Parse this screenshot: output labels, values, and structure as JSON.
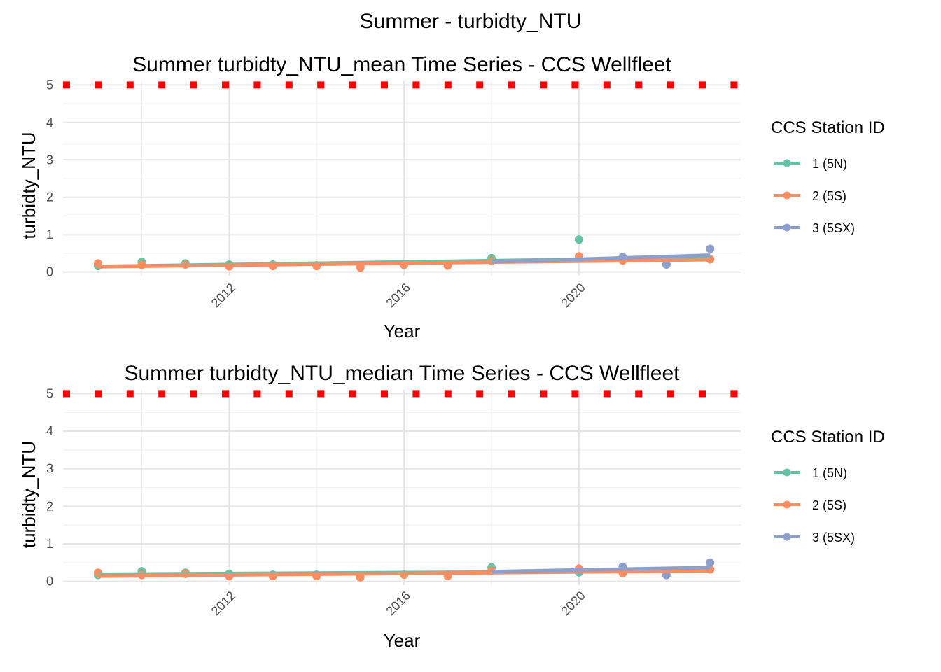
{
  "page_title": "Summer - turbidty_NTU",
  "colors": {
    "s1": "#66c2a5",
    "s2": "#fc8d62",
    "s3": "#8da0cb",
    "threshold": "#ff0000"
  },
  "chart_data": [
    {
      "type": "line",
      "title": "Summer turbidty_NTU_mean Time Series - CCS Wellfleet",
      "xlabel": "Year",
      "ylabel": "turbidty_NTU",
      "xlim": [
        2008.2,
        2023.7
      ],
      "ylim": [
        -0.1,
        5.1
      ],
      "x_ticks": [
        2012,
        2016,
        2020
      ],
      "x_tick_labels": [
        "2012",
        "2016",
        "2020"
      ],
      "y_ticks": [
        0,
        1,
        2,
        3,
        4,
        5
      ],
      "y_tick_labels": [
        "0",
        "1",
        "2",
        "3",
        "4",
        "5"
      ],
      "threshold": 5,
      "legend": {
        "title": "CCS Station ID",
        "position": "right"
      },
      "series": [
        {
          "name": "1 (5N)",
          "color": "#66c2a5",
          "points": [
            [
              2009,
              0.16
            ],
            [
              2010,
              0.27
            ],
            [
              2011,
              0.23
            ],
            [
              2012,
              0.2
            ],
            [
              2013,
              0.2
            ],
            [
              2014,
              0.18
            ],
            [
              2015,
              0.15
            ],
            [
              2016,
              0.19
            ],
            [
              2017,
              0.2
            ],
            [
              2018,
              0.37
            ],
            [
              2020,
              0.87
            ],
            [
              2021,
              0.35
            ],
            [
              2023,
              0.34
            ]
          ],
          "trend": [
            [
              2009,
              0.15
            ],
            [
              2023,
              0.39
            ]
          ]
        },
        {
          "name": "2 (5S)",
          "color": "#fc8d62",
          "points": [
            [
              2009,
              0.23
            ],
            [
              2010,
              0.19
            ],
            [
              2011,
              0.2
            ],
            [
              2012,
              0.15
            ],
            [
              2013,
              0.16
            ],
            [
              2014,
              0.16
            ],
            [
              2015,
              0.12
            ],
            [
              2016,
              0.2
            ],
            [
              2017,
              0.17
            ],
            [
              2018,
              0.3
            ],
            [
              2020,
              0.42
            ],
            [
              2021,
              0.31
            ],
            [
              2023,
              0.34
            ]
          ],
          "trend": [
            [
              2009,
              0.14
            ],
            [
              2023,
              0.33
            ]
          ]
        },
        {
          "name": "3 (5SX)",
          "color": "#8da0cb",
          "points": [
            [
              2021,
              0.4
            ],
            [
              2022,
              0.2
            ],
            [
              2023,
              0.62
            ]
          ],
          "trend": [
            [
              2018,
              0.27
            ],
            [
              2023,
              0.45
            ]
          ]
        }
      ]
    },
    {
      "type": "line",
      "title": "Summer turbidty_NTU_median Time Series - CCS Wellfleet",
      "xlabel": "Year",
      "ylabel": "turbidty_NTU",
      "xlim": [
        2008.2,
        2023.7
      ],
      "ylim": [
        -0.1,
        5.1
      ],
      "x_ticks": [
        2012,
        2016,
        2020
      ],
      "x_tick_labels": [
        "2012",
        "2016",
        "2020"
      ],
      "y_ticks": [
        0,
        1,
        2,
        3,
        4,
        5
      ],
      "y_tick_labels": [
        "0",
        "1",
        "2",
        "3",
        "4",
        "5"
      ],
      "threshold": 5,
      "legend": {
        "title": "CCS Station ID",
        "position": "right"
      },
      "series": [
        {
          "name": "1 (5N)",
          "color": "#66c2a5",
          "points": [
            [
              2009,
              0.17
            ],
            [
              2010,
              0.27
            ],
            [
              2011,
              0.23
            ],
            [
              2012,
              0.2
            ],
            [
              2013,
              0.18
            ],
            [
              2014,
              0.18
            ],
            [
              2015,
              0.16
            ],
            [
              2016,
              0.18
            ],
            [
              2017,
              0.18
            ],
            [
              2018,
              0.37
            ],
            [
              2020,
              0.24
            ],
            [
              2021,
              0.22
            ],
            [
              2023,
              0.32
            ]
          ],
          "trend": [
            [
              2009,
              0.19
            ],
            [
              2023,
              0.28
            ]
          ]
        },
        {
          "name": "2 (5S)",
          "color": "#fc8d62",
          "points": [
            [
              2009,
              0.23
            ],
            [
              2010,
              0.17
            ],
            [
              2011,
              0.2
            ],
            [
              2012,
              0.14
            ],
            [
              2013,
              0.14
            ],
            [
              2014,
              0.14
            ],
            [
              2015,
              0.11
            ],
            [
              2016,
              0.18
            ],
            [
              2017,
              0.14
            ],
            [
              2018,
              0.28
            ],
            [
              2020,
              0.34
            ],
            [
              2021,
              0.22
            ],
            [
              2023,
              0.32
            ]
          ],
          "trend": [
            [
              2009,
              0.14
            ],
            [
              2023,
              0.28
            ]
          ]
        },
        {
          "name": "3 (5SX)",
          "color": "#8da0cb",
          "points": [
            [
              2021,
              0.39
            ],
            [
              2022,
              0.17
            ],
            [
              2023,
              0.5
            ]
          ],
          "trend": [
            [
              2018,
              0.26
            ],
            [
              2023,
              0.37
            ]
          ]
        }
      ]
    }
  ]
}
